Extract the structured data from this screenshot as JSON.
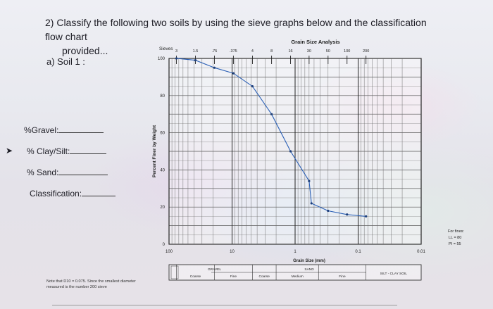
{
  "question": {
    "line1": "2) Classify the following two soils by using the sieve graphs below and the classification flow chart",
    "line2": "provided..."
  },
  "soil_label": "a) Soil 1 :",
  "fields": [
    {
      "label": "%Gravel:"
    },
    {
      "label": "% Clay/Silt:"
    },
    {
      "label": "% Sand:"
    },
    {
      "label": "Classification:"
    }
  ],
  "note": "Note that D10 = 0.075. Since the smallest diameter measured is the number 200 sieve",
  "fines_note": {
    "title": "For fines:",
    "ll": "LL = 80",
    "pi": "PI = 55"
  },
  "chart_data": {
    "type": "line",
    "title": "Grain Size Analysis",
    "sieves_label": "Sieves",
    "sieve_labels": [
      "3",
      "1.5",
      ".75",
      ".375",
      "4",
      "8",
      "16",
      "30",
      "50",
      "100",
      "200"
    ],
    "sieve_sizes_mm": [
      76.2,
      38.1,
      19.05,
      9.525,
      4.75,
      2.36,
      1.18,
      0.6,
      0.3,
      0.15,
      0.075
    ],
    "xlabel": "Grain Size (mm)",
    "ylabel": "Percent Finer by Weight",
    "x_scale": "log",
    "x_reversed": true,
    "xlim": [
      0.01,
      100
    ],
    "ylim": [
      0,
      100
    ],
    "x_ticks": [
      "100",
      "10",
      "1",
      "0.1",
      "0.01"
    ],
    "y_ticks": [
      "0",
      "20",
      "40",
      "60",
      "80",
      "100"
    ],
    "series": [
      {
        "x": [
          76.2,
          38.1,
          19.05,
          9.525,
          4.75,
          2.36,
          1.18,
          0.6,
          0.55,
          0.3,
          0.15,
          0.075
        ],
        "y": [
          100,
          99,
          95,
          92,
          85,
          70,
          50,
          34,
          22,
          18,
          16,
          15
        ]
      }
    ],
    "classification_bar": {
      "gravel": "GRAVEL",
      "sand": "SAND",
      "coarse": "Coarse",
      "fine": "Fine",
      "medium": "Medium",
      "silt_clay": "SILT - CLAY SOIL"
    }
  }
}
